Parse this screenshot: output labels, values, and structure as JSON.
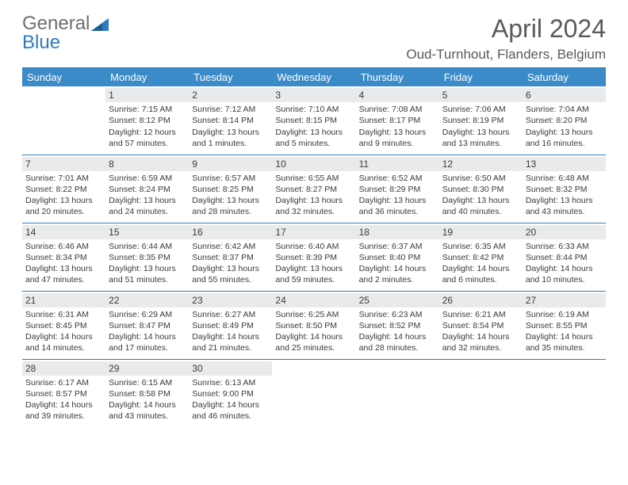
{
  "logo": {
    "text1": "General",
    "text2": "Blue"
  },
  "title": "April 2024",
  "location": "Oud-Turnhout, Flanders, Belgium",
  "colors": {
    "header_bg": "#3b8bc8",
    "header_text": "#ffffff",
    "divider": "#2f7bbf",
    "daynum_bg": "#e9eaec",
    "text": "#3a3a3a",
    "logo_gray": "#6d6e71",
    "logo_blue": "#2f7bbf"
  },
  "fonts": {
    "title_size": 32,
    "location_size": 17,
    "header_size": 13,
    "cell_size": 10.5,
    "daynum_size": 12
  },
  "weekdays": [
    "Sunday",
    "Monday",
    "Tuesday",
    "Wednesday",
    "Thursday",
    "Friday",
    "Saturday"
  ],
  "weeks": [
    [
      {
        "blank": true
      },
      {
        "day": "1",
        "sunrise": "Sunrise: 7:15 AM",
        "sunset": "Sunset: 8:12 PM",
        "daylight1": "Daylight: 12 hours",
        "daylight2": "and 57 minutes."
      },
      {
        "day": "2",
        "sunrise": "Sunrise: 7:12 AM",
        "sunset": "Sunset: 8:14 PM",
        "daylight1": "Daylight: 13 hours",
        "daylight2": "and 1 minutes."
      },
      {
        "day": "3",
        "sunrise": "Sunrise: 7:10 AM",
        "sunset": "Sunset: 8:15 PM",
        "daylight1": "Daylight: 13 hours",
        "daylight2": "and 5 minutes."
      },
      {
        "day": "4",
        "sunrise": "Sunrise: 7:08 AM",
        "sunset": "Sunset: 8:17 PM",
        "daylight1": "Daylight: 13 hours",
        "daylight2": "and 9 minutes."
      },
      {
        "day": "5",
        "sunrise": "Sunrise: 7:06 AM",
        "sunset": "Sunset: 8:19 PM",
        "daylight1": "Daylight: 13 hours",
        "daylight2": "and 13 minutes."
      },
      {
        "day": "6",
        "sunrise": "Sunrise: 7:04 AM",
        "sunset": "Sunset: 8:20 PM",
        "daylight1": "Daylight: 13 hours",
        "daylight2": "and 16 minutes."
      }
    ],
    [
      {
        "day": "7",
        "sunrise": "Sunrise: 7:01 AM",
        "sunset": "Sunset: 8:22 PM",
        "daylight1": "Daylight: 13 hours",
        "daylight2": "and 20 minutes."
      },
      {
        "day": "8",
        "sunrise": "Sunrise: 6:59 AM",
        "sunset": "Sunset: 8:24 PM",
        "daylight1": "Daylight: 13 hours",
        "daylight2": "and 24 minutes."
      },
      {
        "day": "9",
        "sunrise": "Sunrise: 6:57 AM",
        "sunset": "Sunset: 8:25 PM",
        "daylight1": "Daylight: 13 hours",
        "daylight2": "and 28 minutes."
      },
      {
        "day": "10",
        "sunrise": "Sunrise: 6:55 AM",
        "sunset": "Sunset: 8:27 PM",
        "daylight1": "Daylight: 13 hours",
        "daylight2": "and 32 minutes."
      },
      {
        "day": "11",
        "sunrise": "Sunrise: 6:52 AM",
        "sunset": "Sunset: 8:29 PM",
        "daylight1": "Daylight: 13 hours",
        "daylight2": "and 36 minutes."
      },
      {
        "day": "12",
        "sunrise": "Sunrise: 6:50 AM",
        "sunset": "Sunset: 8:30 PM",
        "daylight1": "Daylight: 13 hours",
        "daylight2": "and 40 minutes."
      },
      {
        "day": "13",
        "sunrise": "Sunrise: 6:48 AM",
        "sunset": "Sunset: 8:32 PM",
        "daylight1": "Daylight: 13 hours",
        "daylight2": "and 43 minutes."
      }
    ],
    [
      {
        "day": "14",
        "sunrise": "Sunrise: 6:46 AM",
        "sunset": "Sunset: 8:34 PM",
        "daylight1": "Daylight: 13 hours",
        "daylight2": "and 47 minutes."
      },
      {
        "day": "15",
        "sunrise": "Sunrise: 6:44 AM",
        "sunset": "Sunset: 8:35 PM",
        "daylight1": "Daylight: 13 hours",
        "daylight2": "and 51 minutes."
      },
      {
        "day": "16",
        "sunrise": "Sunrise: 6:42 AM",
        "sunset": "Sunset: 8:37 PM",
        "daylight1": "Daylight: 13 hours",
        "daylight2": "and 55 minutes."
      },
      {
        "day": "17",
        "sunrise": "Sunrise: 6:40 AM",
        "sunset": "Sunset: 8:39 PM",
        "daylight1": "Daylight: 13 hours",
        "daylight2": "and 59 minutes."
      },
      {
        "day": "18",
        "sunrise": "Sunrise: 6:37 AM",
        "sunset": "Sunset: 8:40 PM",
        "daylight1": "Daylight: 14 hours",
        "daylight2": "and 2 minutes."
      },
      {
        "day": "19",
        "sunrise": "Sunrise: 6:35 AM",
        "sunset": "Sunset: 8:42 PM",
        "daylight1": "Daylight: 14 hours",
        "daylight2": "and 6 minutes."
      },
      {
        "day": "20",
        "sunrise": "Sunrise: 6:33 AM",
        "sunset": "Sunset: 8:44 PM",
        "daylight1": "Daylight: 14 hours",
        "daylight2": "and 10 minutes."
      }
    ],
    [
      {
        "day": "21",
        "sunrise": "Sunrise: 6:31 AM",
        "sunset": "Sunset: 8:45 PM",
        "daylight1": "Daylight: 14 hours",
        "daylight2": "and 14 minutes."
      },
      {
        "day": "22",
        "sunrise": "Sunrise: 6:29 AM",
        "sunset": "Sunset: 8:47 PM",
        "daylight1": "Daylight: 14 hours",
        "daylight2": "and 17 minutes."
      },
      {
        "day": "23",
        "sunrise": "Sunrise: 6:27 AM",
        "sunset": "Sunset: 8:49 PM",
        "daylight1": "Daylight: 14 hours",
        "daylight2": "and 21 minutes."
      },
      {
        "day": "24",
        "sunrise": "Sunrise: 6:25 AM",
        "sunset": "Sunset: 8:50 PM",
        "daylight1": "Daylight: 14 hours",
        "daylight2": "and 25 minutes."
      },
      {
        "day": "25",
        "sunrise": "Sunrise: 6:23 AM",
        "sunset": "Sunset: 8:52 PM",
        "daylight1": "Daylight: 14 hours",
        "daylight2": "and 28 minutes."
      },
      {
        "day": "26",
        "sunrise": "Sunrise: 6:21 AM",
        "sunset": "Sunset: 8:54 PM",
        "daylight1": "Daylight: 14 hours",
        "daylight2": "and 32 minutes."
      },
      {
        "day": "27",
        "sunrise": "Sunrise: 6:19 AM",
        "sunset": "Sunset: 8:55 PM",
        "daylight1": "Daylight: 14 hours",
        "daylight2": "and 35 minutes."
      }
    ],
    [
      {
        "day": "28",
        "sunrise": "Sunrise: 6:17 AM",
        "sunset": "Sunset: 8:57 PM",
        "daylight1": "Daylight: 14 hours",
        "daylight2": "and 39 minutes."
      },
      {
        "day": "29",
        "sunrise": "Sunrise: 6:15 AM",
        "sunset": "Sunset: 8:58 PM",
        "daylight1": "Daylight: 14 hours",
        "daylight2": "and 43 minutes."
      },
      {
        "day": "30",
        "sunrise": "Sunrise: 6:13 AM",
        "sunset": "Sunset: 9:00 PM",
        "daylight1": "Daylight: 14 hours",
        "daylight2": "and 46 minutes."
      },
      {
        "blank": true
      },
      {
        "blank": true
      },
      {
        "blank": true
      },
      {
        "blank": true
      }
    ]
  ]
}
